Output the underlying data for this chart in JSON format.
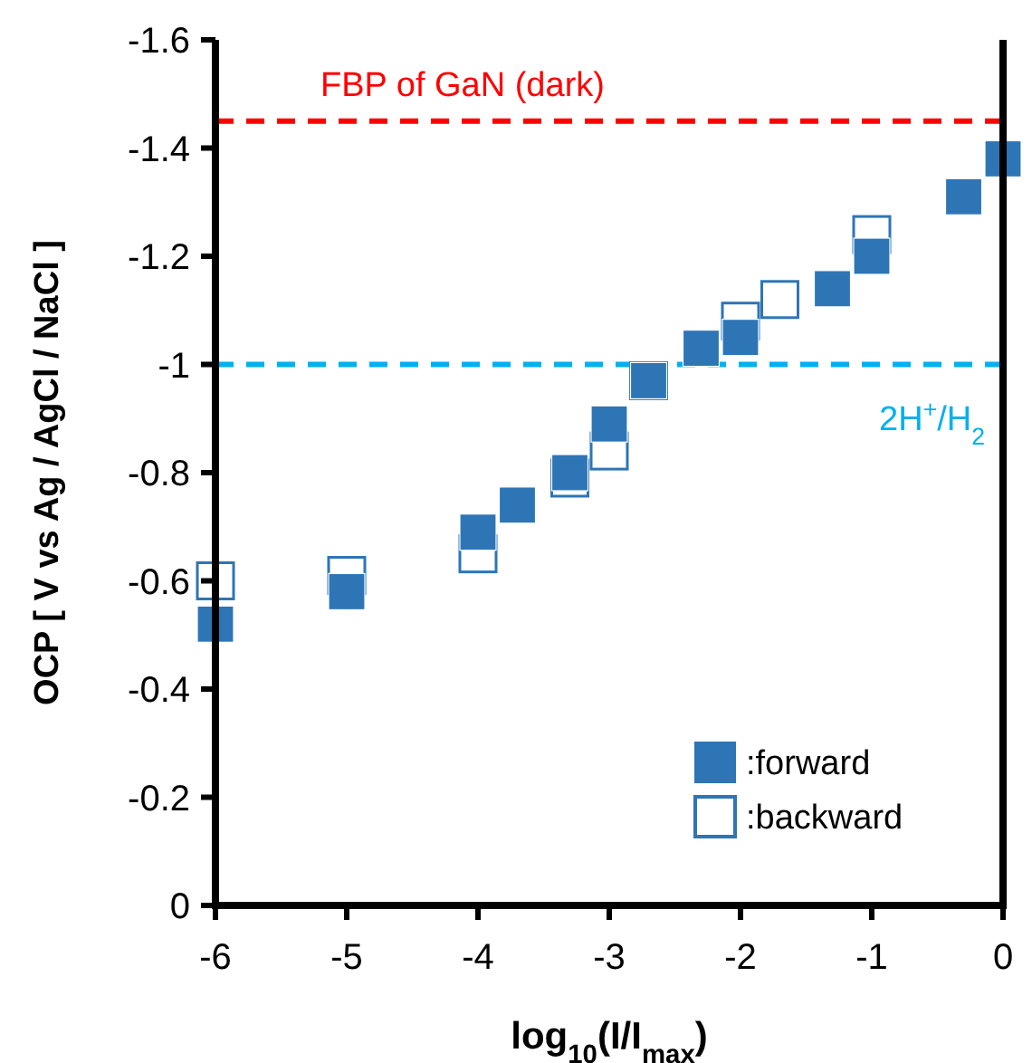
{
  "chart_data": {
    "type": "scatter",
    "xlabel": "log$_{10}$(I/I$_{max}$)",
    "ylabel": "OCP [ V vs Ag / AgCl / NaCl ]",
    "xlim": [
      -6,
      0
    ],
    "xticks": [
      -6,
      -5,
      -4,
      -3,
      -2,
      -1,
      0
    ],
    "ylim": [
      0,
      -1.6
    ],
    "yticks": [
      0,
      -0.2,
      -0.4,
      -0.6,
      -0.8,
      -1,
      -1.2,
      -1.4,
      -1.6
    ],
    "marker": "square",
    "legend": "bottom right",
    "grid": false,
    "series": [
      {
        "name": ":forward",
        "color": "#2e75b6",
        "x": [
          -6,
          -5,
          -4,
          -3.7,
          -3.3,
          -3,
          -2.7,
          -2.3,
          -2,
          -1.3,
          -1,
          -0.3,
          0
        ],
        "values": [
          -0.52,
          -0.58,
          -0.69,
          -0.74,
          -0.8,
          -0.89,
          -0.97,
          -1.03,
          -1.05,
          -1.14,
          -1.2,
          -1.31,
          -1.38
        ]
      },
      {
        "name": ":backward",
        "color": "#2e75b6",
        "x": [
          -6,
          -5,
          -4,
          -3.3,
          -3,
          -2.7,
          -2,
          -1.7,
          -1
        ],
        "values": [
          -0.6,
          -0.61,
          -0.65,
          -0.79,
          -0.84,
          -0.97,
          -1.08,
          -1.12,
          -1.24
        ]
      }
    ],
    "ref_lines": [
      {
        "axis": "y",
        "value": -1.45,
        "label": "FBP of GaN (dark)",
        "color": "#ff0000",
        "line_style": "dashed"
      },
      {
        "axis": "y",
        "value": -1,
        "label": "2H$^{+}$/H$_{2}$",
        "color": "#00b0f0",
        "line_style": "dashed"
      }
    ]
  }
}
